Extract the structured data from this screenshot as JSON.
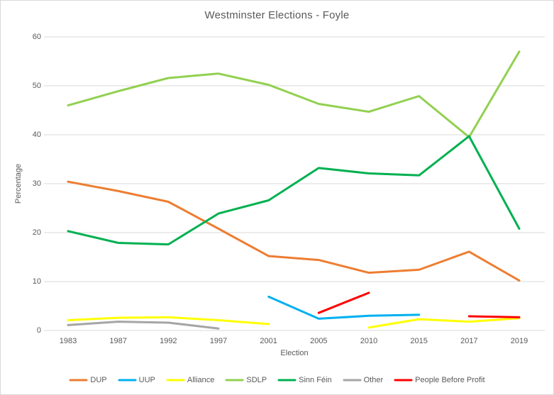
{
  "chart_data": {
    "type": "line",
    "title": "Westminster Elections - Foyle",
    "xlabel": "Election",
    "ylabel": "Percentage",
    "ylim": [
      0,
      60
    ],
    "ytick_interval": 10,
    "grid": "horizontal",
    "legend_position": "bottom",
    "gridline_color": "#d9d9d9",
    "text_color": "#595959",
    "categories": [
      "1983",
      "1987",
      "1992",
      "1997",
      "2001",
      "2005",
      "2010",
      "2015",
      "2017",
      "2019"
    ],
    "series": [
      {
        "name": "DUP",
        "color": "#ED7D31",
        "values": [
          30.4,
          28.5,
          26.3,
          20.8,
          15.2,
          14.4,
          11.8,
          12.4,
          16.1,
          10.2
        ]
      },
      {
        "name": "UUP",
        "color": "#00B0F0",
        "values": [
          null,
          null,
          null,
          null,
          6.9,
          2.4,
          3.0,
          3.2,
          null,
          null
        ]
      },
      {
        "name": "Alliance",
        "color": "#FFFF00",
        "values": [
          2.1,
          2.6,
          2.7,
          2.1,
          1.3,
          null,
          0.6,
          2.3,
          1.8,
          2.5
        ]
      },
      {
        "name": "SDLP",
        "color": "#92D050",
        "values": [
          46.0,
          48.9,
          51.6,
          52.5,
          50.2,
          46.3,
          44.7,
          47.9,
          39.5,
          57.0
        ]
      },
      {
        "name": "Sinn Féin",
        "color": "#00B050",
        "values": [
          20.3,
          17.9,
          17.6,
          23.9,
          26.6,
          33.2,
          32.1,
          31.7,
          39.7,
          20.8
        ]
      },
      {
        "name": "Other",
        "color": "#A5A5A5",
        "values": [
          1.1,
          1.8,
          1.6,
          0.4,
          null,
          null,
          null,
          null,
          null,
          null
        ]
      },
      {
        "name": "People Before Profit",
        "color": "#FF0000",
        "values": [
          null,
          null,
          null,
          null,
          null,
          3.6,
          7.7,
          null,
          2.9,
          2.7
        ]
      }
    ]
  }
}
